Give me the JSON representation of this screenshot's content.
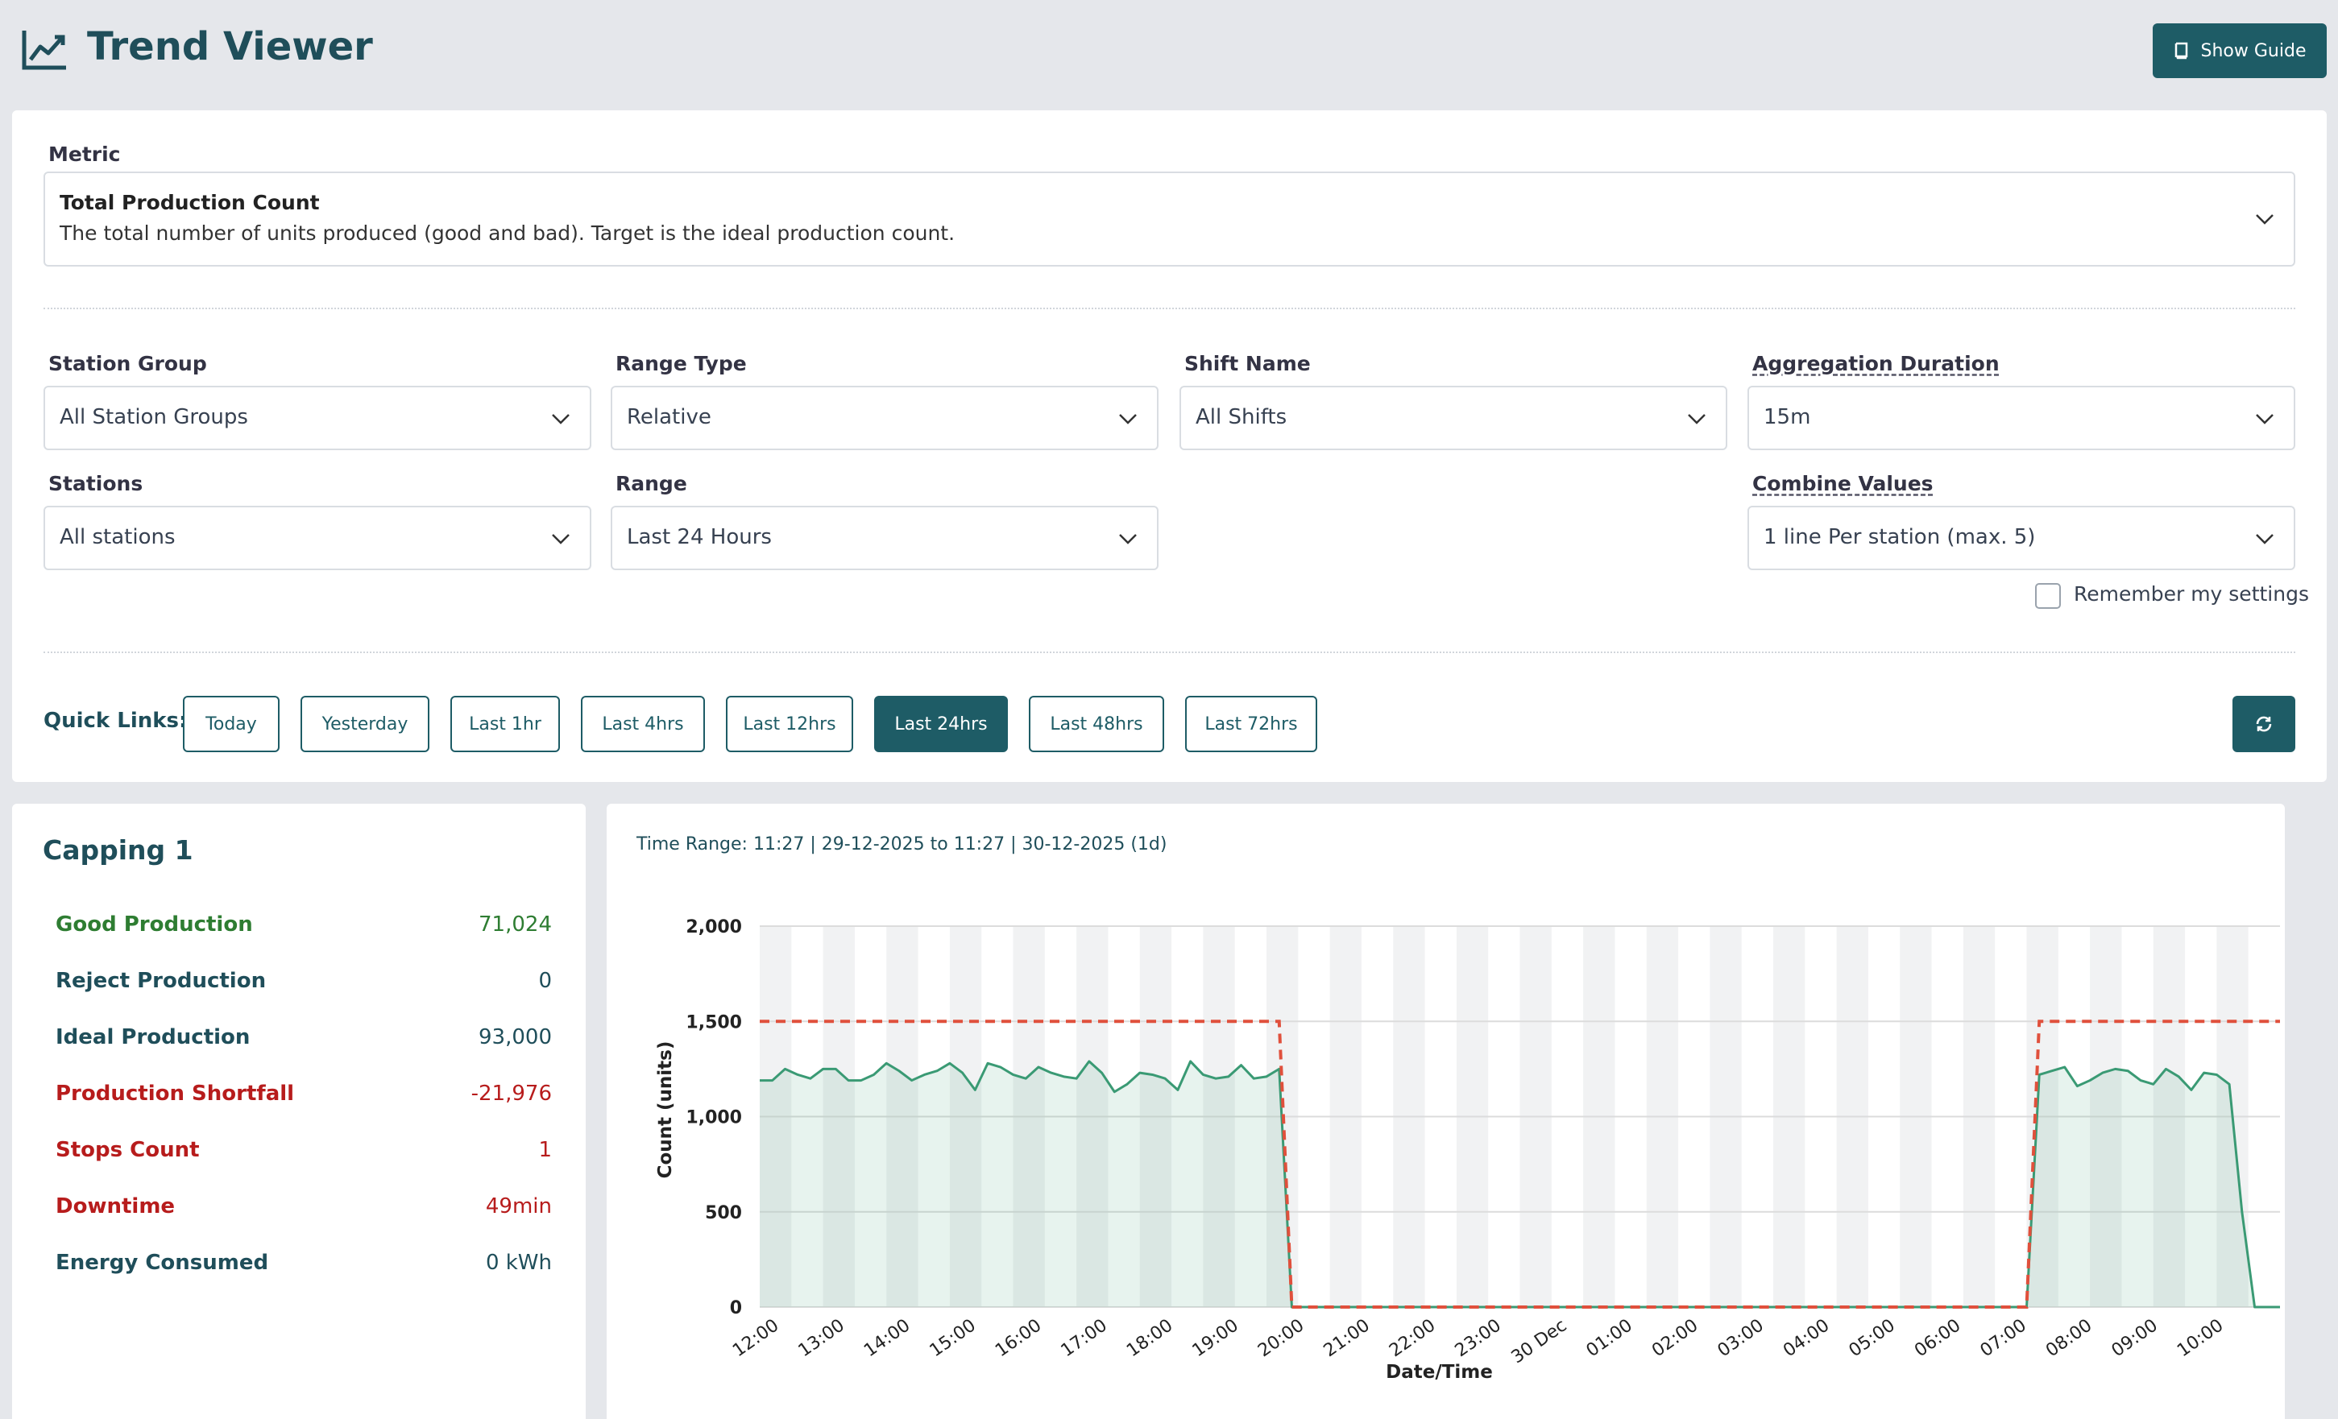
{
  "app": {
    "title": "Trend Viewer",
    "guide_button": "Show Guide"
  },
  "metric": {
    "label": "Metric",
    "title": "Total Production Count",
    "description": "The total number of units produced (good and bad). Target is the ideal production count."
  },
  "filters": {
    "station_group": {
      "label": "Station Group",
      "value": "All Station Groups"
    },
    "range_type": {
      "label": "Range Type",
      "value": "Relative"
    },
    "shift_name": {
      "label": "Shift Name",
      "value": "All Shifts"
    },
    "aggregation": {
      "label": "Aggregation Duration",
      "value": "15m"
    },
    "stations": {
      "label": "Stations",
      "value": "All stations"
    },
    "range": {
      "label": "Range",
      "value": "Last 24 Hours"
    },
    "combine": {
      "label": "Combine Values",
      "value": "1 line Per station (max. 5)"
    },
    "remember": {
      "label": "Remember my settings",
      "checked": false
    }
  },
  "quick_links": {
    "label": "Quick Links:",
    "items": [
      "Today",
      "Yesterday",
      "Last 1hr",
      "Last 4hrs",
      "Last 12hrs",
      "Last 24hrs",
      "Last 48hrs",
      "Last 72hrs"
    ],
    "active": "Last 24hrs"
  },
  "stats": {
    "title": "Capping 1",
    "rows": [
      {
        "name": "Good Production",
        "value": "71,024",
        "color": "#2e7d32"
      },
      {
        "name": "Reject Production",
        "value": "0",
        "color": "#1f4e5a"
      },
      {
        "name": "Ideal Production",
        "value": "93,000",
        "color": "#1f4e5a"
      },
      {
        "name": "Production Shortfall",
        "value": "-21,976",
        "color": "#b71c1c"
      },
      {
        "name": "Stops Count",
        "value": "1",
        "color": "#b71c1c"
      },
      {
        "name": "Downtime",
        "value": "49min",
        "color": "#b71c1c"
      },
      {
        "name": "Energy Consumed",
        "value": "0 kWh",
        "color": "#1f4e5a"
      }
    ]
  },
  "colors": {
    "accent": "#1e5c66",
    "series_actual": "#3a9a74",
    "series_target": "#e0503c"
  },
  "chart_data": {
    "type": "line",
    "time_range": "Time Range: 11:27 | 29-12-2025 to 11:27 | 30-12-2025 (1d)",
    "xlabel": "Date/Time",
    "ylabel": "Count (units)",
    "ylim": [
      0,
      2000
    ],
    "yticks": [
      "0",
      "500",
      "1,000",
      "1,500",
      "2,000"
    ],
    "xtick_labels": [
      "12:00",
      "13:00",
      "14:00",
      "15:00",
      "16:00",
      "17:00",
      "18:00",
      "19:00",
      "20:00",
      "21:00",
      "22:00",
      "23:00",
      "30 Dec",
      "01:00",
      "02:00",
      "03:00",
      "04:00",
      "05:00",
      "06:00",
      "07:00",
      "08:00",
      "09:00",
      "10:00"
    ],
    "grid": true,
    "series": [
      {
        "values": [
          1190,
          1190,
          1250,
          1220,
          1200,
          1250,
          1250,
          1190,
          1190,
          1220,
          1280,
          1240,
          1190,
          1220,
          1240,
          1280,
          1230,
          1140,
          1280,
          1260,
          1220,
          1200,
          1260,
          1230,
          1210,
          1200,
          1290,
          1230,
          1130,
          1170,
          1230,
          1220,
          1200,
          1140,
          1290,
          1220,
          1200,
          1210,
          1270,
          1200,
          1210,
          1250,
          0,
          0,
          0,
          0,
          0,
          0,
          0,
          0,
          0,
          0,
          0,
          0,
          0,
          0,
          0,
          0,
          0,
          0,
          0,
          0,
          0,
          0,
          0,
          0,
          0,
          0,
          0,
          0,
          0,
          0,
          0,
          0,
          0,
          0,
          0,
          0,
          0,
          0,
          0,
          0,
          0,
          0,
          0,
          0,
          0,
          0,
          0,
          0,
          0,
          0,
          0,
          0,
          0,
          0,
          0,
          0,
          0,
          0,
          0,
          1220,
          1240,
          1260,
          1160,
          1190,
          1230,
          1250,
          1240,
          1190,
          1170,
          1250,
          1210,
          1140,
          1230,
          1220,
          1170,
          500,
          0,
          0,
          0
        ]
      },
      {
        "values": [
          1500,
          1500,
          1500,
          1500,
          1500,
          1500,
          1500,
          1500,
          1500,
          1500,
          1500,
          1500,
          1500,
          1500,
          1500,
          1500,
          1500,
          1500,
          1500,
          1500,
          1500,
          1500,
          1500,
          1500,
          1500,
          1500,
          1500,
          1500,
          1500,
          1500,
          1500,
          1500,
          1500,
          1500,
          1500,
          1500,
          1500,
          1500,
          1500,
          1500,
          1500,
          1500,
          0,
          0,
          0,
          0,
          0,
          0,
          0,
          0,
          0,
          0,
          0,
          0,
          0,
          0,
          0,
          0,
          0,
          0,
          0,
          0,
          0,
          0,
          0,
          0,
          0,
          0,
          0,
          0,
          0,
          0,
          0,
          0,
          0,
          0,
          0,
          0,
          0,
          0,
          0,
          0,
          0,
          0,
          0,
          0,
          0,
          0,
          0,
          0,
          0,
          0,
          0,
          0,
          0,
          0,
          0,
          0,
          0,
          0,
          0,
          1500,
          1500,
          1500,
          1500,
          1500,
          1500,
          1500,
          1500,
          1500,
          1500,
          1500,
          1500,
          1500,
          1500,
          1500,
          1500,
          1500,
          1500,
          1500,
          1500
        ]
      }
    ]
  }
}
